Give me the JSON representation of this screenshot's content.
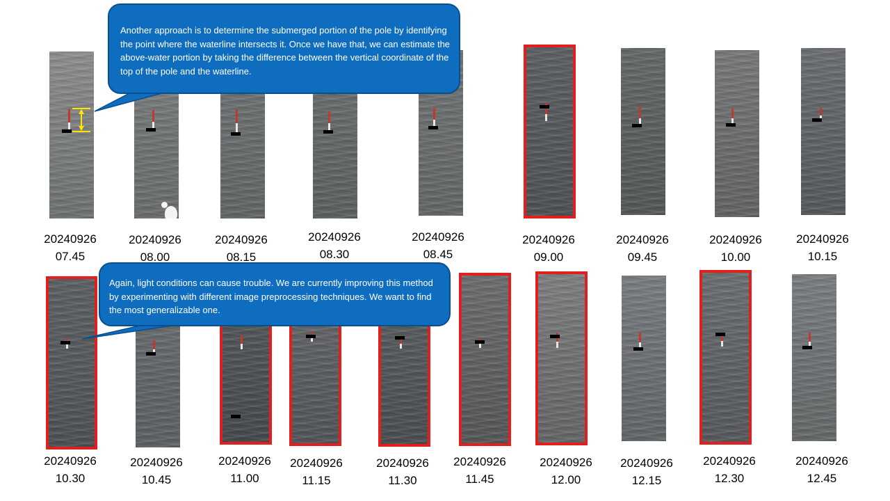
{
  "callouts": [
    {
      "text": "Another approach is to determine the submerged portion of the pole by identifying the point where the waterline intersects it. Once we have that, we can estimate the above-water portion by taking the difference between the vertical coordinate of the top of the pole and the waterline."
    },
    {
      "text": "Again, light conditions can cause trouble. We are currently improving this method by experimenting with different image preprocessing techniques. We want to find the most generalizable one."
    }
  ],
  "frames": [
    {
      "date": "20240926",
      "time": "07.45",
      "flagged": false
    },
    {
      "date": "20240926",
      "time": "08.00",
      "flagged": false
    },
    {
      "date": "20240926",
      "time": "08.15",
      "flagged": false
    },
    {
      "date": "20240926",
      "time": "08.30",
      "flagged": false
    },
    {
      "date": "20240926",
      "time": "08.45",
      "flagged": false
    },
    {
      "date": "20240926",
      "time": "09.00",
      "flagged": true
    },
    {
      "date": "20240926",
      "time": "09.45",
      "flagged": false
    },
    {
      "date": "20240926",
      "time": "10.00",
      "flagged": false
    },
    {
      "date": "20240926",
      "time": "10.15",
      "flagged": false
    },
    {
      "date": "20240926",
      "time": "10.30",
      "flagged": true
    },
    {
      "date": "20240926",
      "time": "10.45",
      "flagged": false
    },
    {
      "date": "20240926",
      "time": "11.00",
      "flagged": true
    },
    {
      "date": "20240926",
      "time": "11.15",
      "flagged": true
    },
    {
      "date": "20240926",
      "time": "11.30",
      "flagged": true
    },
    {
      "date": "20240926",
      "time": "11.45",
      "flagged": true
    },
    {
      "date": "20240926",
      "time": "12.00",
      "flagged": true
    },
    {
      "date": "20240926",
      "time": "12.15",
      "flagged": false
    },
    {
      "date": "20240926",
      "time": "12.30",
      "flagged": true
    },
    {
      "date": "20240926",
      "time": "12.45",
      "flagged": false
    }
  ],
  "colors": {
    "flag_border": "#e21f1f",
    "callout_fill": "#0f6dc0",
    "waterline_marker": "#000000",
    "measure_bracket": "#ffe600"
  }
}
